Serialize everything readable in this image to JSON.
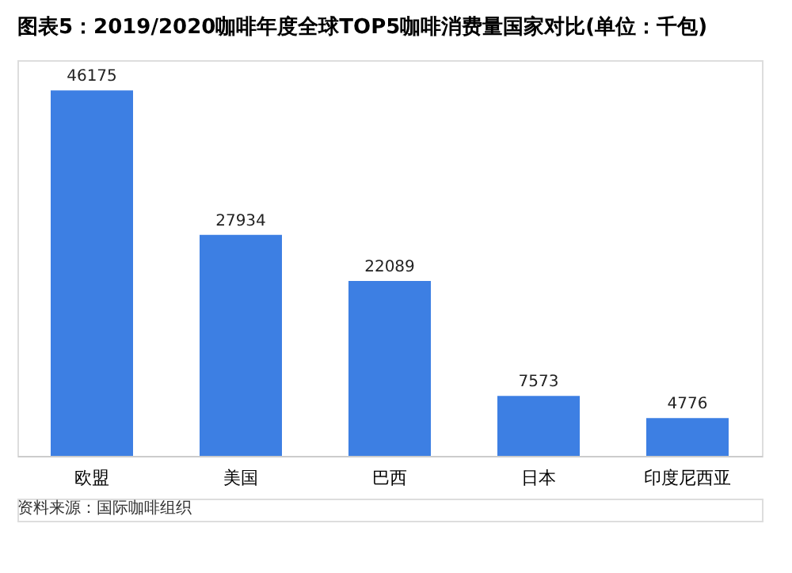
{
  "chart_data": {
    "type": "bar",
    "title": "图表5：2019/2020咖啡年度全球TOP5咖啡消费量国家对比(单位：千包)",
    "categories": [
      "欧盟",
      "美国",
      "巴西",
      "日本",
      "印度尼西亚"
    ],
    "values": [
      46175,
      27934,
      22089,
      7573,
      4776
    ],
    "color": "#3d7fe3",
    "data_labels": true,
    "grid": false,
    "annotations": [
      "资料来源：国际咖啡组织"
    ]
  }
}
